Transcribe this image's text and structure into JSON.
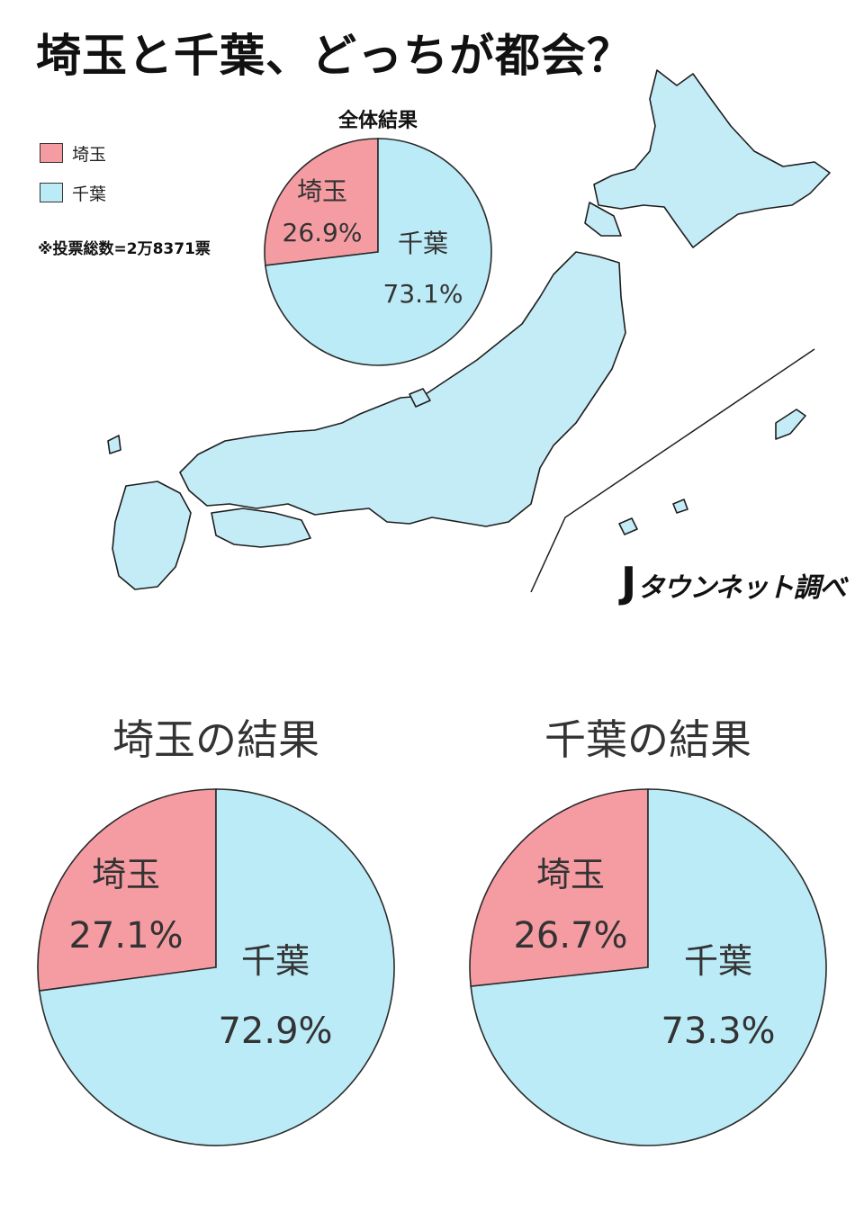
{
  "header": {
    "title": "埼玉と千葉、どっちが都会？"
  },
  "legend": {
    "items": [
      {
        "label": "埼玉",
        "color": "#f59ca3"
      },
      {
        "label": "千葉",
        "color": "#bcebf8"
      }
    ]
  },
  "note": "※投票総数=2万8371票",
  "brand": {
    "mark": "J",
    "text": "タウンネット調べ"
  },
  "colors": {
    "saitama": "#f59ca3",
    "chiba": "#bcebf8",
    "outline": "#2a2a2a"
  },
  "chart_data": [
    {
      "type": "pie",
      "title": "全体結果",
      "slices": [
        {
          "label": "埼玉",
          "value": 26.9,
          "text": "26.9%",
          "color": "#f59ca3"
        },
        {
          "label": "千葉",
          "value": 73.1,
          "text": "73.1%",
          "color": "#bcebf8"
        }
      ]
    },
    {
      "type": "pie",
      "title": "埼玉の結果",
      "slices": [
        {
          "label": "埼玉",
          "value": 27.1,
          "text": "27.1%",
          "color": "#f59ca3"
        },
        {
          "label": "千葉",
          "value": 72.9,
          "text": "72.9%",
          "color": "#bcebf8"
        }
      ]
    },
    {
      "type": "pie",
      "title": "千葉の結果",
      "slices": [
        {
          "label": "埼玉",
          "value": 26.7,
          "text": "26.7%",
          "color": "#f59ca3"
        },
        {
          "label": "千葉",
          "value": 73.3,
          "text": "73.3%",
          "color": "#bcebf8"
        }
      ]
    }
  ]
}
